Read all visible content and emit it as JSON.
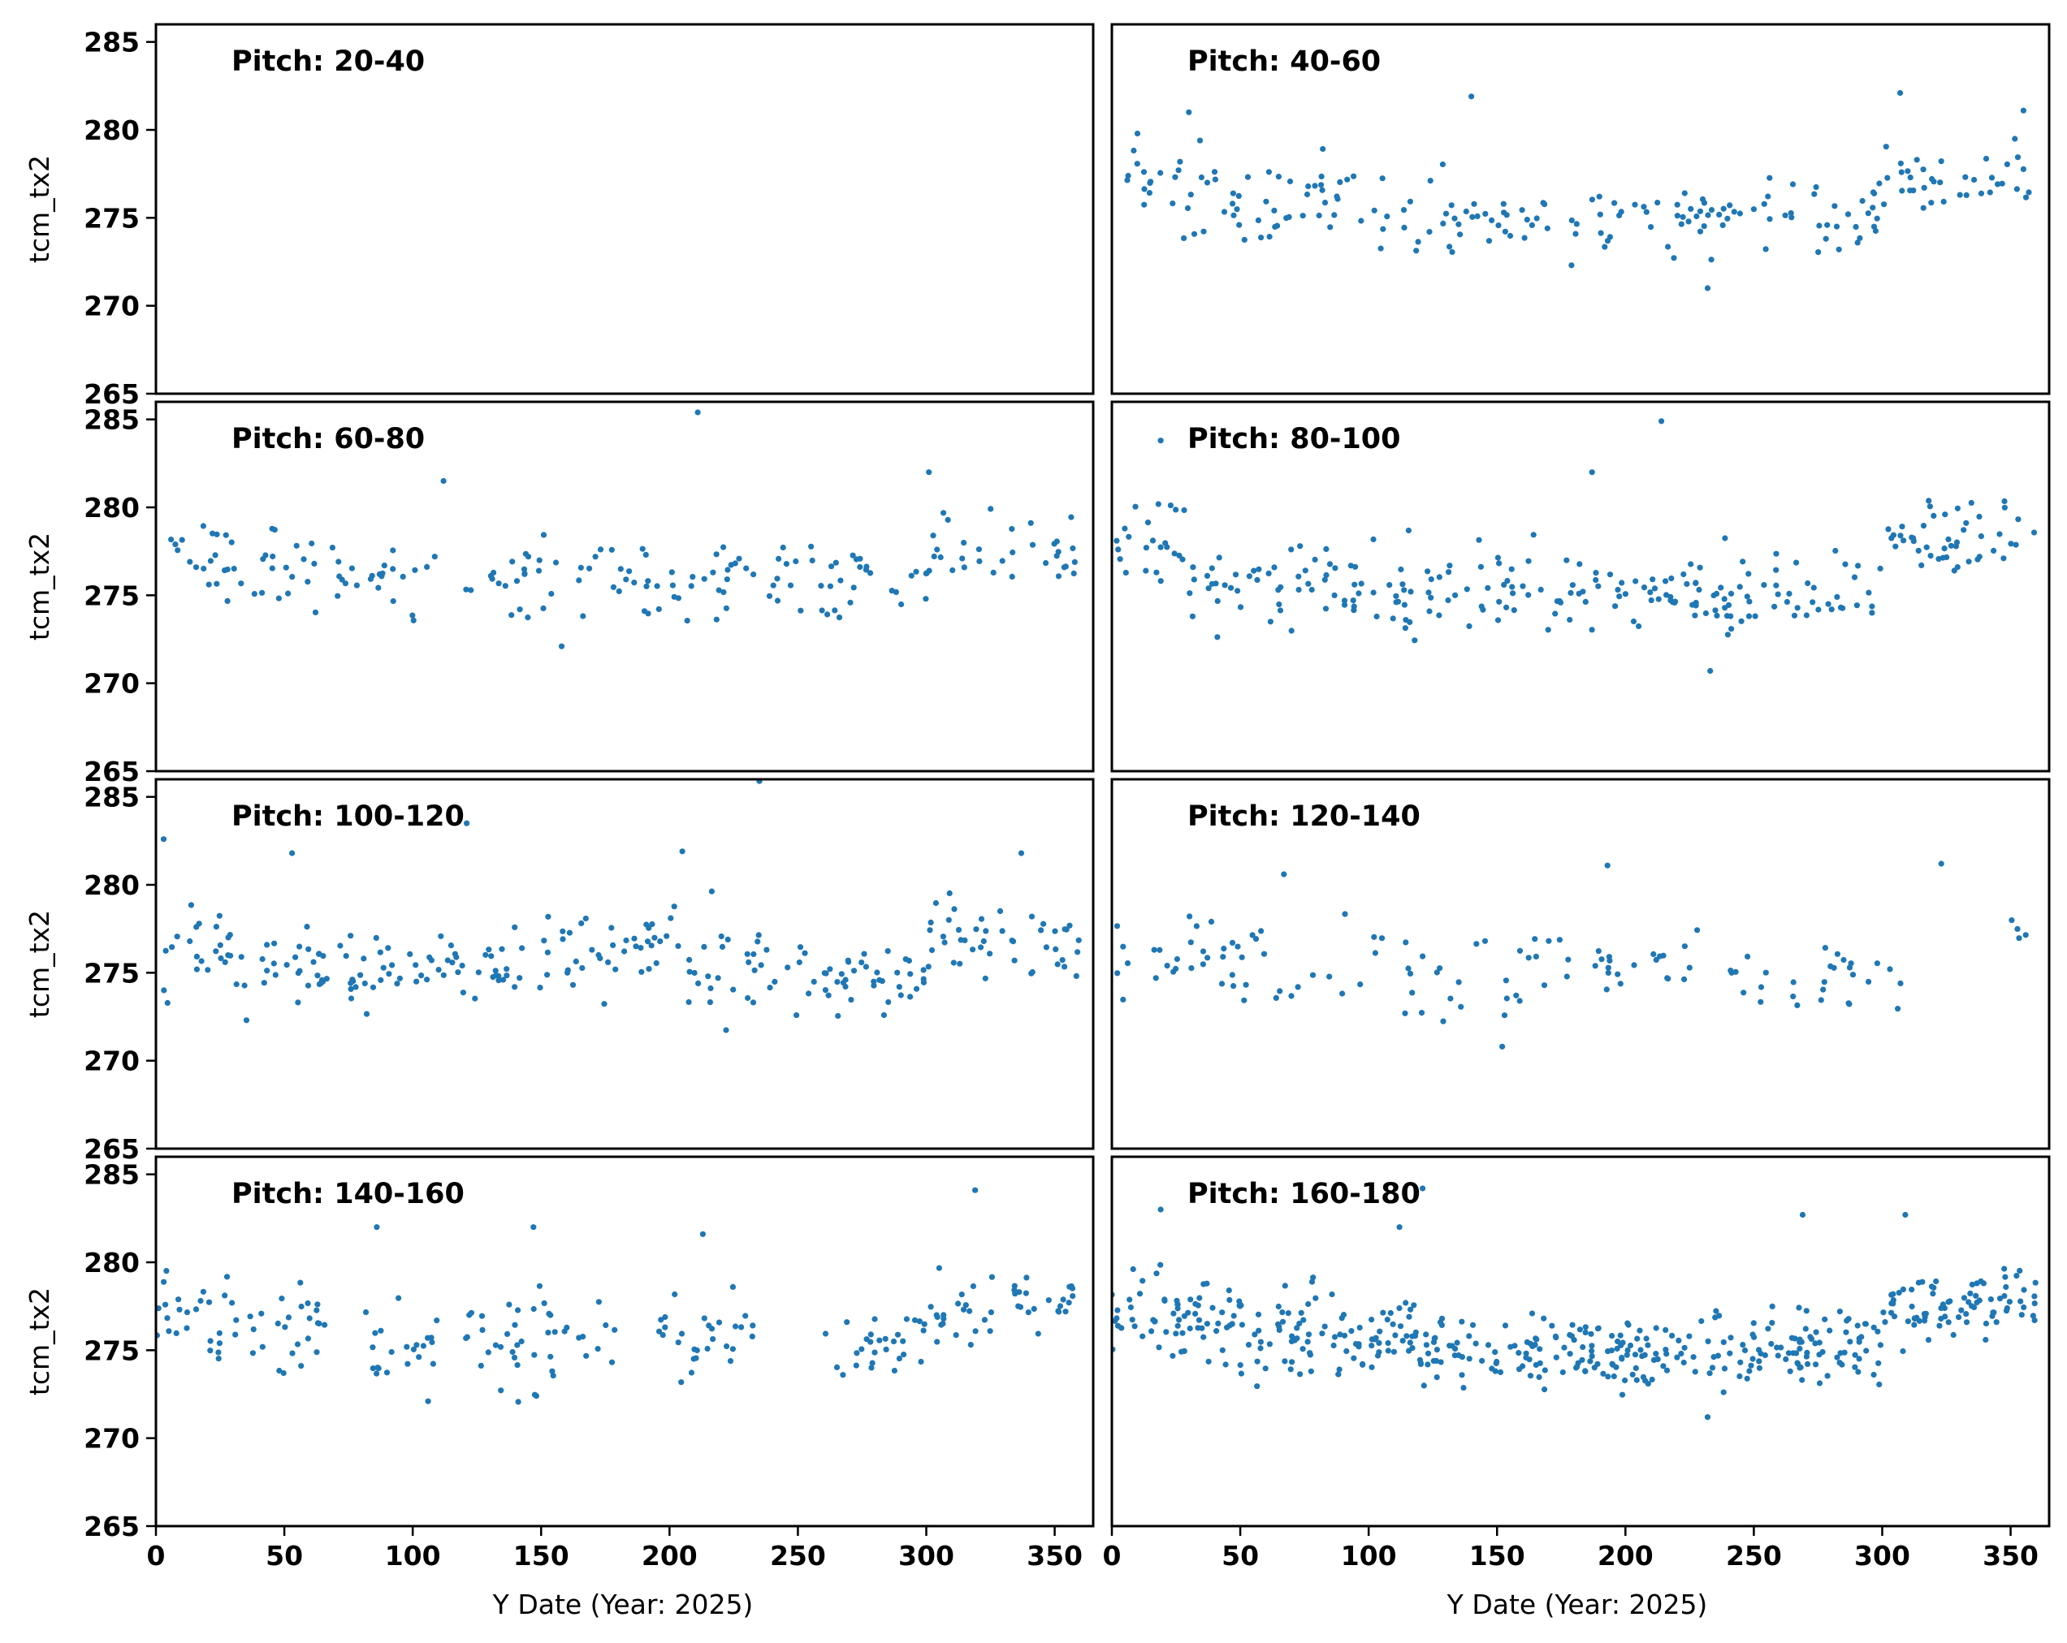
{
  "chart_data": {
    "type": "scatter",
    "layout": "4x2 small multiples, shared axes",
    "xlabel": "Y Date (Year: 2025)",
    "ylabel": "tcm_tx2",
    "xlim": [
      0,
      365
    ],
    "ylim": [
      265,
      286
    ],
    "xticks": [
      0,
      50,
      100,
      150,
      200,
      250,
      300,
      350
    ],
    "yticks": [
      265,
      270,
      275,
      280,
      285
    ],
    "marker_color": "#1f77b4",
    "approximation_note": "Point clouds are approximate, generated to match the visible density, trend and spread of each panel.",
    "panels": [
      {
        "title": "Pitch: 20-40",
        "n": 0,
        "segments": [],
        "outliers": []
      },
      {
        "title": "Pitch: 40-60",
        "n": 220,
        "segments": [
          [
            0,
            20,
            277.5,
            1.3
          ],
          [
            20,
            45,
            276,
            2.4
          ],
          [
            45,
            130,
            275.8,
            2.1
          ],
          [
            130,
            175,
            274.8,
            1.2
          ],
          [
            175,
            300,
            274.8,
            1.7
          ],
          [
            300,
            360,
            277.2,
            1.4
          ]
        ],
        "outliers": [
          [
            140,
            281.9
          ],
          [
            232,
            271
          ],
          [
            307,
            282.1
          ],
          [
            355,
            281.1
          ],
          [
            30,
            281
          ]
        ]
      },
      {
        "title": "Pitch: 60-80",
        "n": 200,
        "segments": [
          [
            0,
            25,
            277.5,
            1.2
          ],
          [
            25,
            70,
            276.5,
            1.9
          ],
          [
            70,
            110,
            275.5,
            1.8
          ],
          [
            120,
            210,
            276,
            2
          ],
          [
            210,
            260,
            276,
            2
          ],
          [
            260,
            300,
            275.5,
            1.8
          ],
          [
            300,
            360,
            277.8,
            1.5
          ]
        ],
        "outliers": [
          [
            211,
            285.4
          ],
          [
            112,
            281.5
          ],
          [
            301,
            282
          ],
          [
            158,
            272.1
          ]
        ]
      },
      {
        "title": "Pitch: 80-100",
        "n": 280,
        "segments": [
          [
            0,
            30,
            278.2,
            2
          ],
          [
            30,
            100,
            275.5,
            1.6
          ],
          [
            100,
            165,
            275.2,
            2.2
          ],
          [
            165,
            235,
            275.2,
            1.5
          ],
          [
            235,
            300,
            275.2,
            1.6
          ],
          [
            300,
            360,
            278.5,
            1.6
          ]
        ],
        "outliers": [
          [
            214,
            284.9
          ],
          [
            19,
            283.8
          ],
          [
            233,
            270.7
          ],
          [
            187,
            282
          ]
        ]
      },
      {
        "title": "Pitch: 100-120",
        "n": 270,
        "segments": [
          [
            0,
            30,
            276.5,
            2.5
          ],
          [
            30,
            110,
            275.2,
            1.8
          ],
          [
            110,
            150,
            275,
            1.3
          ],
          [
            150,
            200,
            276,
            1.8
          ],
          [
            200,
            240,
            276,
            2.6
          ],
          [
            240,
            300,
            274.6,
            1.6
          ],
          [
            300,
            360,
            276.8,
            1.8
          ]
        ],
        "outliers": [
          [
            235,
            285.9
          ],
          [
            3,
            282.6
          ],
          [
            121,
            283.5
          ],
          [
            53,
            281.8
          ],
          [
            337,
            281.8
          ],
          [
            205,
            281.9
          ]
        ]
      },
      {
        "title": "Pitch: 120-140",
        "n": 130,
        "segments": [
          [
            0,
            20,
            275.7,
            1.8
          ],
          [
            20,
            110,
            275.8,
            1.9
          ],
          [
            110,
            160,
            274.5,
            2.1
          ],
          [
            160,
            230,
            275.5,
            2
          ],
          [
            240,
            310,
            274.5,
            1.6
          ],
          [
            350,
            360,
            277.2,
            1.1
          ]
        ],
        "outliers": [
          [
            323,
            281.2
          ],
          [
            193,
            281.1
          ],
          [
            67,
            280.6
          ],
          [
            152,
            270.8
          ]
        ]
      },
      {
        "title": "Pitch: 140-160",
        "n": 220,
        "segments": [
          [
            0,
            20,
            277,
            1.8
          ],
          [
            20,
            70,
            276.5,
            2.1
          ],
          [
            80,
            110,
            275,
            2
          ],
          [
            120,
            180,
            275.5,
            2.1
          ],
          [
            195,
            235,
            275.8,
            2.3
          ],
          [
            260,
            300,
            275.2,
            1.9
          ],
          [
            300,
            330,
            277.5,
            2.1
          ],
          [
            330,
            360,
            278.3,
            1.6
          ]
        ],
        "outliers": [
          [
            319,
            284.1
          ],
          [
            86,
            282
          ],
          [
            147,
            282
          ],
          [
            213,
            281.6
          ],
          [
            106,
            272.1
          ]
        ]
      },
      {
        "title": "Pitch: 160-180",
        "n": 500,
        "segments": [
          [
            0,
            50,
            277,
            1.8
          ],
          [
            50,
            120,
            275.8,
            1.8
          ],
          [
            120,
            230,
            275,
            1.6
          ],
          [
            230,
            300,
            275.2,
            1.7
          ],
          [
            300,
            360,
            277.5,
            1.5
          ]
        ],
        "outliers": [
          [
            121,
            284.2
          ],
          [
            232,
            271.2
          ],
          [
            269,
            282.7
          ],
          [
            309,
            282.7
          ],
          [
            112,
            282
          ],
          [
            19,
            283
          ]
        ]
      }
    ]
  }
}
